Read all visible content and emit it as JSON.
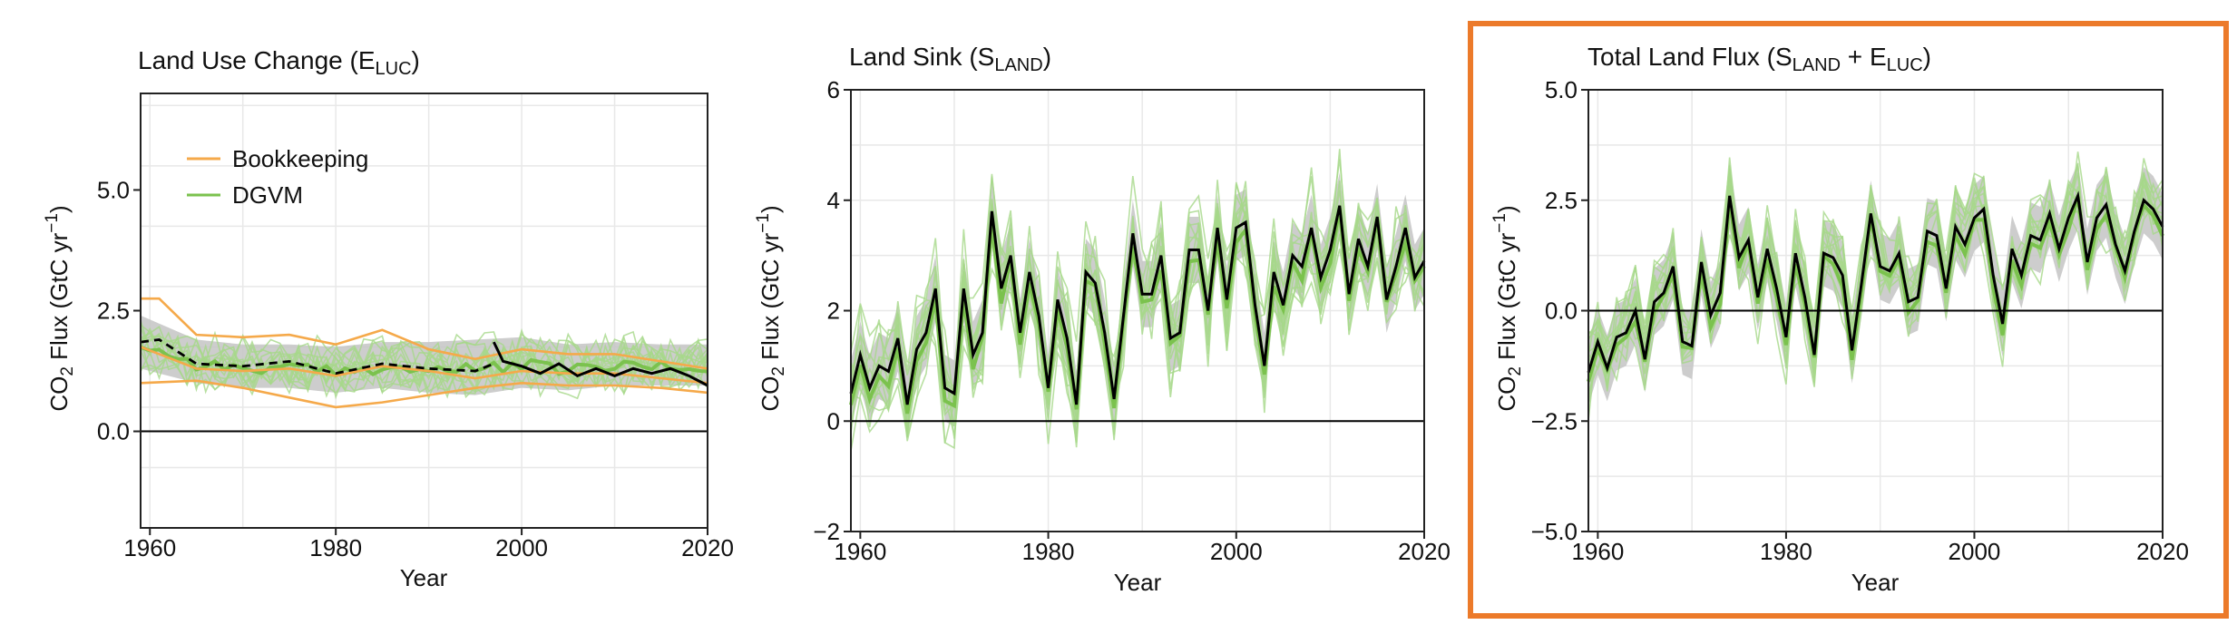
{
  "colors": {
    "bookkeeping": "#f5a94a",
    "dgvm": "#7bc24e",
    "dgvm_light": "#a6d88a",
    "observed": "#000000",
    "band": "#c4c4c4",
    "highlight": "#ec7a2a",
    "grid": "#e8e8e8"
  },
  "chart_data": [
    {
      "id": "luc",
      "type": "line",
      "title_main": "Land Use Change (E",
      "title_sub": "LUC",
      "title_end": ")",
      "xlabel": "Year",
      "ylabel_pre": "CO",
      "ylabel_sub": "2",
      "ylabel_mid": " Flux (GtC  yr",
      "ylabel_sup": "−1",
      "ylabel_end": ")",
      "xlim": [
        1959,
        2020
      ],
      "ylim": [
        -2.0,
        7.0
      ],
      "xticks": [
        1960,
        1980,
        2000,
        2020
      ],
      "yticks": [
        0.0,
        2.5,
        5.0
      ],
      "ytick_labels": [
        "0.0",
        "2.5",
        "5.0"
      ],
      "grid": true,
      "zero_line": true,
      "legend": {
        "position": "top-left",
        "entries": [
          {
            "label": "Bookkeeping",
            "color_key": "bookkeeping"
          },
          {
            "label": "DGVM",
            "color_key": "dgvm"
          }
        ]
      },
      "band": {
        "years": [
          1959,
          1965,
          1970,
          1975,
          1980,
          1985,
          1990,
          1995,
          2000,
          2005,
          2010,
          2015,
          2020
        ],
        "low": [
          1.3,
          1.0,
          0.9,
          0.9,
          0.8,
          0.9,
          0.8,
          0.75,
          0.9,
          0.85,
          0.95,
          0.95,
          0.95
        ],
        "high": [
          2.4,
          1.9,
          1.8,
          1.8,
          1.75,
          1.85,
          1.85,
          1.9,
          1.95,
          1.8,
          1.85,
          1.8,
          1.8
        ]
      },
      "bookkeeping_series": [
        {
          "name": "Bookkeeping",
          "years": [
            1959,
            1961,
            1965,
            1970,
            1975,
            1980,
            1985,
            1990,
            1995,
            2000,
            2005,
            2010,
            2015,
            2020
          ],
          "values": [
            2.75,
            2.75,
            2.0,
            1.95,
            2.0,
            1.8,
            2.1,
            1.7,
            1.5,
            1.7,
            1.6,
            1.6,
            1.45,
            1.3
          ]
        },
        {
          "name": "Bookkeeping",
          "years": [
            1959,
            1965,
            1970,
            1975,
            1980,
            1985,
            1990,
            1995,
            2000,
            2005,
            2010,
            2015,
            2020
          ],
          "values": [
            1.75,
            1.3,
            1.25,
            1.3,
            1.15,
            1.35,
            1.25,
            1.1,
            1.25,
            1.2,
            1.2,
            1.1,
            1.0
          ]
        },
        {
          "name": "Bookkeeping",
          "years": [
            1959,
            1965,
            1970,
            1975,
            1980,
            1985,
            1990,
            1995,
            2000,
            2005,
            2010,
            2015,
            2020
          ],
          "values": [
            1.0,
            1.05,
            0.9,
            0.7,
            0.5,
            0.6,
            0.75,
            0.9,
            1.0,
            0.95,
            0.95,
            0.9,
            0.8
          ]
        }
      ],
      "bookkeeping_mean": {
        "years": [
          1959,
          1961,
          1965,
          1970,
          1975,
          1980,
          1985,
          1990,
          1995,
          1997
        ],
        "values": [
          1.85,
          1.9,
          1.4,
          1.35,
          1.45,
          1.2,
          1.4,
          1.3,
          1.25,
          1.4
        ]
      },
      "observed": {
        "years": [
          1997,
          1998,
          2000,
          2002,
          2004,
          2006,
          2008,
          2010,
          2012,
          2014,
          2016,
          2018,
          2020
        ],
        "values": [
          1.85,
          1.45,
          1.35,
          1.2,
          1.4,
          1.15,
          1.3,
          1.15,
          1.3,
          1.2,
          1.3,
          1.15,
          0.95
        ]
      }
    },
    {
      "id": "sink",
      "type": "line",
      "title_main": "Land Sink (S",
      "title_sub": "LAND",
      "title_end": ")",
      "xlabel": "Year",
      "ylabel_pre": "CO",
      "ylabel_sub": "2",
      "ylabel_mid": " Flux (GtC  yr",
      "ylabel_sup": "−1",
      "ylabel_end": ")",
      "xlim": [
        1959,
        2020
      ],
      "ylim": [
        -2,
        6
      ],
      "xticks": [
        1960,
        1980,
        2000,
        2020
      ],
      "yticks": [
        -2,
        0,
        2,
        4,
        6
      ],
      "ytick_labels": [
        "−2",
        "0",
        "2",
        "4",
        "6"
      ],
      "grid": true,
      "zero_line": true,
      "band_half_width": 0.6,
      "observed": {
        "years": [
          1959,
          1960,
          1961,
          1962,
          1963,
          1964,
          1965,
          1966,
          1967,
          1968,
          1969,
          1970,
          1971,
          1972,
          1973,
          1974,
          1975,
          1976,
          1977,
          1978,
          1979,
          1980,
          1981,
          1982,
          1983,
          1984,
          1985,
          1986,
          1987,
          1988,
          1989,
          1990,
          1991,
          1992,
          1993,
          1994,
          1995,
          1996,
          1997,
          1998,
          1999,
          2000,
          2001,
          2002,
          2003,
          2004,
          2005,
          2006,
          2007,
          2008,
          2009,
          2010,
          2011,
          2012,
          2013,
          2014,
          2015,
          2016,
          2017,
          2018,
          2019,
          2020
        ],
        "values": [
          0.5,
          1.2,
          0.6,
          1.0,
          0.9,
          1.5,
          0.3,
          1.3,
          1.6,
          2.4,
          0.6,
          0.5,
          2.4,
          1.2,
          1.6,
          3.8,
          2.4,
          3.0,
          1.6,
          2.7,
          1.9,
          0.6,
          2.2,
          1.5,
          0.3,
          2.7,
          2.5,
          1.6,
          0.4,
          1.9,
          3.4,
          2.3,
          2.3,
          3.0,
          1.5,
          1.6,
          3.1,
          3.1,
          2.0,
          3.5,
          2.2,
          3.5,
          3.6,
          2.1,
          1.0,
          2.7,
          2.1,
          3.0,
          2.8,
          3.5,
          2.6,
          3.1,
          3.9,
          2.3,
          3.3,
          2.8,
          3.7,
          2.2,
          2.8,
          3.5,
          2.6,
          2.9
        ]
      },
      "dgvm_mean_note": "",
      "dgvm_mean_values": []
    },
    {
      "id": "total",
      "type": "line",
      "title_main": "Total Land Flux (S",
      "title_sub": "LAND",
      "title_mid": "  +  E",
      "title_sub2": "LUC",
      "title_end": ")",
      "xlabel": "Year",
      "ylabel_pre": "CO",
      "ylabel_sub": "2",
      "ylabel_mid": " Flux (GtC  yr",
      "ylabel_sup": "−1",
      "ylabel_end": ")",
      "xlim": [
        1959,
        2020
      ],
      "ylim": [
        -5.0,
        5.0
      ],
      "xticks": [
        1960,
        1980,
        2000,
        2020
      ],
      "yticks": [
        -5.0,
        -2.5,
        0.0,
        2.5,
        5.0
      ],
      "ytick_labels": [
        "−5.0",
        "−2.5",
        "0.0",
        "2.5",
        "5.0"
      ],
      "grid": true,
      "zero_line": true,
      "highlighted": true,
      "band_half_width": 0.75,
      "observed": {
        "years": [
          1959,
          1960,
          1961,
          1962,
          1963,
          1964,
          1965,
          1966,
          1967,
          1968,
          1969,
          1970,
          1971,
          1972,
          1973,
          1974,
          1975,
          1976,
          1977,
          1978,
          1979,
          1980,
          1981,
          1982,
          1983,
          1984,
          1985,
          1986,
          1987,
          1988,
          1989,
          1990,
          1991,
          1992,
          1993,
          1994,
          1995,
          1996,
          1997,
          1998,
          1999,
          2000,
          2001,
          2002,
          2003,
          2004,
          2005,
          2006,
          2007,
          2008,
          2009,
          2010,
          2011,
          2012,
          2013,
          2014,
          2015,
          2016,
          2017,
          2018,
          2019,
          2020
        ],
        "values": [
          -1.4,
          -0.7,
          -1.3,
          -0.6,
          -0.5,
          0.0,
          -1.1,
          0.2,
          0.4,
          1.0,
          -0.7,
          -0.8,
          1.1,
          -0.1,
          0.4,
          2.6,
          1.2,
          1.6,
          0.3,
          1.4,
          0.5,
          -0.6,
          1.3,
          0.3,
          -1.0,
          1.3,
          1.2,
          0.8,
          -0.9,
          0.6,
          2.2,
          1.0,
          0.9,
          1.3,
          0.2,
          0.3,
          1.8,
          1.7,
          0.5,
          1.9,
          1.5,
          2.1,
          2.3,
          0.8,
          -0.3,
          1.4,
          0.8,
          1.7,
          1.6,
          2.2,
          1.4,
          2.1,
          2.6,
          1.1,
          2.1,
          2.4,
          1.5,
          0.9,
          1.8,
          2.5,
          2.3,
          1.9
        ]
      },
      "dgvm_mean_note": "",
      "dgvm_mean_values": []
    }
  ]
}
